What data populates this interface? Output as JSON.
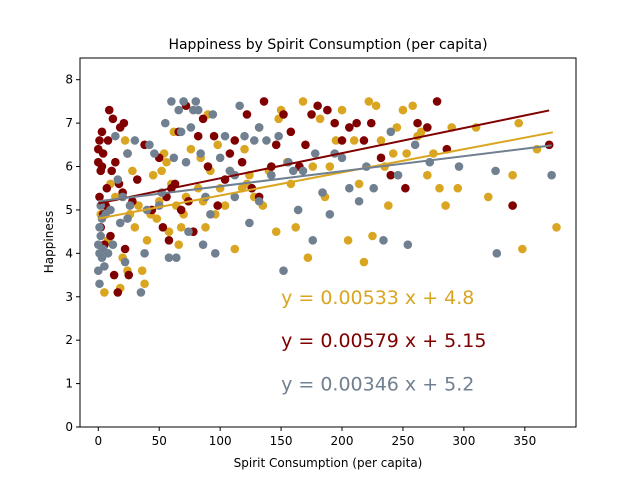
{
  "chart_data": {
    "type": "scatter",
    "title": "Happiness by Spirit Consumption (per capita)",
    "xlabel": "Spirit Consumption (per capita)",
    "ylabel": "Happiness",
    "xlim": [
      -15,
      392
    ],
    "ylim": [
      0,
      8.5
    ],
    "xticks": [
      0,
      50,
      100,
      150,
      200,
      250,
      300,
      350
    ],
    "yticks": [
      0,
      1,
      2,
      3,
      4,
      5,
      6,
      7,
      8
    ],
    "grid": false,
    "series": [
      {
        "color": "#DAA520",
        "fit": {
          "slope": 0.00533,
          "intercept": 4.8,
          "x_range": [
            0,
            373
          ],
          "label": "y = 0.00533 x + 4.8",
          "label_pos": [
            150,
            3
          ]
        },
        "points": [
          [
            2,
            4.9
          ],
          [
            5,
            5.1
          ],
          [
            5,
            3.1
          ],
          [
            8,
            4.3
          ],
          [
            10,
            5.6
          ],
          [
            14,
            5.3
          ],
          [
            18,
            3.2
          ],
          [
            20,
            3.9
          ],
          [
            22,
            6.6
          ],
          [
            24,
            3.6
          ],
          [
            26,
            4.9
          ],
          [
            28,
            5.9
          ],
          [
            30,
            4.6
          ],
          [
            33,
            5.1
          ],
          [
            36,
            3.6
          ],
          [
            38,
            3.3
          ],
          [
            40,
            4.3
          ],
          [
            43,
            4.9
          ],
          [
            45,
            5.8
          ],
          [
            48,
            4.8
          ],
          [
            50,
            5.2
          ],
          [
            52,
            5.9
          ],
          [
            54,
            6.3
          ],
          [
            56,
            6.1
          ],
          [
            58,
            4.5
          ],
          [
            60,
            5.6
          ],
          [
            62,
            6.8
          ],
          [
            64,
            5.1
          ],
          [
            66,
            4.2
          ],
          [
            68,
            4.6
          ],
          [
            70,
            4.9
          ],
          [
            72,
            5.3
          ],
          [
            74,
            5.2
          ],
          [
            76,
            6.4
          ],
          [
            78,
            4.5
          ],
          [
            82,
            5.5
          ],
          [
            84,
            6.2
          ],
          [
            88,
            4.6
          ],
          [
            90,
            7.2
          ],
          [
            92,
            5.9
          ],
          [
            96,
            4.9
          ],
          [
            98,
            6.5
          ],
          [
            100,
            5.5
          ],
          [
            104,
            5.1
          ],
          [
            108,
            5.9
          ],
          [
            112,
            4.1
          ],
          [
            118,
            5.5
          ],
          [
            120,
            6.4
          ],
          [
            124,
            5.8
          ],
          [
            128,
            5.3
          ],
          [
            132,
            6.9
          ],
          [
            135,
            5.1
          ],
          [
            140,
            5.9
          ],
          [
            146,
            4.5
          ],
          [
            148,
            7.1
          ],
          [
            150,
            7.3
          ],
          [
            155,
            6.1
          ],
          [
            158,
            5.6
          ],
          [
            162,
            4.6
          ],
          [
            165,
            6.0
          ],
          [
            168,
            7.5
          ],
          [
            172,
            3.9
          ],
          [
            176,
            6.0
          ],
          [
            182,
            7.1
          ],
          [
            186,
            5.3
          ],
          [
            190,
            6.0
          ],
          [
            195,
            6.6
          ],
          [
            200,
            7.3
          ],
          [
            205,
            4.3
          ],
          [
            210,
            6.6
          ],
          [
            214,
            5.6
          ],
          [
            218,
            3.8
          ],
          [
            222,
            7.5
          ],
          [
            225,
            4.4
          ],
          [
            228,
            7.4
          ],
          [
            232,
            6.6
          ],
          [
            235,
            6.0
          ],
          [
            238,
            5.1
          ],
          [
            242,
            6.3
          ],
          [
            245,
            6.9
          ],
          [
            250,
            7.3
          ],
          [
            253,
            6.3
          ],
          [
            258,
            7.4
          ],
          [
            262,
            6.7
          ],
          [
            265,
            6.8
          ],
          [
            270,
            5.8
          ],
          [
            275,
            6.3
          ],
          [
            280,
            5.5
          ],
          [
            285,
            5.1
          ],
          [
            290,
            6.9
          ],
          [
            295,
            5.5
          ],
          [
            310,
            6.9
          ],
          [
            320,
            5.3
          ],
          [
            340,
            5.8
          ],
          [
            345,
            7.0
          ],
          [
            348,
            4.1
          ],
          [
            360,
            6.4
          ],
          [
            376,
            4.6
          ],
          [
            122,
            5.6
          ],
          [
            86,
            5.2
          ]
        ]
      },
      {
        "color": "#800000",
        "fit": {
          "slope": 0.00579,
          "intercept": 5.15,
          "x_range": [
            0,
            370
          ],
          "label": "y = 0.00579 x + 5.15",
          "label_pos": [
            150,
            2
          ]
        },
        "points": [
          [
            0,
            6.4
          ],
          [
            0,
            6.1
          ],
          [
            1,
            6.6
          ],
          [
            1,
            5.3
          ],
          [
            2,
            5.9
          ],
          [
            2,
            4.6
          ],
          [
            3,
            6.8
          ],
          [
            3,
            6.0
          ],
          [
            4,
            4.9
          ],
          [
            4,
            6.3
          ],
          [
            5,
            4.2
          ],
          [
            6,
            5.1
          ],
          [
            7,
            5.5
          ],
          [
            8,
            6.6
          ],
          [
            9,
            7.3
          ],
          [
            10,
            4.4
          ],
          [
            11,
            5.9
          ],
          [
            12,
            7.1
          ],
          [
            13,
            3.5
          ],
          [
            14,
            6.1
          ],
          [
            16,
            3.1
          ],
          [
            17,
            5.6
          ],
          [
            18,
            6.9
          ],
          [
            20,
            5.4
          ],
          [
            21,
            7.0
          ],
          [
            22,
            4.1
          ],
          [
            24,
            6.3
          ],
          [
            25,
            3.5
          ],
          [
            28,
            5.2
          ],
          [
            32,
            5.7
          ],
          [
            38,
            6.5
          ],
          [
            44,
            5.0
          ],
          [
            50,
            6.2
          ],
          [
            53,
            4.6
          ],
          [
            56,
            5.3
          ],
          [
            58,
            4.3
          ],
          [
            60,
            5.5
          ],
          [
            63,
            5.6
          ],
          [
            66,
            6.8
          ],
          [
            68,
            5.0
          ],
          [
            72,
            7.4
          ],
          [
            74,
            5.2
          ],
          [
            78,
            4.5
          ],
          [
            82,
            6.7
          ],
          [
            86,
            7.1
          ],
          [
            90,
            6.0
          ],
          [
            95,
            6.7
          ],
          [
            104,
            5.7
          ],
          [
            108,
            6.3
          ],
          [
            112,
            6.6
          ],
          [
            118,
            6.1
          ],
          [
            122,
            7.2
          ],
          [
            126,
            5.5
          ],
          [
            132,
            5.3
          ],
          [
            136,
            7.5
          ],
          [
            142,
            6.0
          ],
          [
            146,
            6.5
          ],
          [
            152,
            7.2
          ],
          [
            158,
            6.8
          ],
          [
            165,
            6.0
          ],
          [
            170,
            6.5
          ],
          [
            175,
            7.2
          ],
          [
            180,
            7.4
          ],
          [
            188,
            7.3
          ],
          [
            194,
            7.0
          ],
          [
            200,
            6.6
          ],
          [
            206,
            6.9
          ],
          [
            212,
            7.0
          ],
          [
            218,
            6.6
          ],
          [
            224,
            7.0
          ],
          [
            232,
            6.2
          ],
          [
            240,
            5.8
          ],
          [
            252,
            5.5
          ],
          [
            262,
            7.0
          ],
          [
            270,
            6.9
          ],
          [
            278,
            7.5
          ],
          [
            286,
            6.4
          ],
          [
            340,
            5.1
          ],
          [
            370,
            6.5
          ],
          [
            98,
            5.1
          ]
        ]
      },
      {
        "color": "#708090",
        "fit": {
          "slope": 0.00346,
          "intercept": 5.2,
          "x_range": [
            0,
            372
          ],
          "label": "y = 0.00346 x + 5.2",
          "label_pos": [
            150,
            1
          ]
        },
        "points": [
          [
            0,
            4.2
          ],
          [
            0,
            3.6
          ],
          [
            1,
            4.6
          ],
          [
            1,
            4.0
          ],
          [
            1,
            3.3
          ],
          [
            2,
            5.1
          ],
          [
            2,
            4.4
          ],
          [
            3,
            3.9
          ],
          [
            3,
            4.8
          ],
          [
            4,
            4.1
          ],
          [
            5,
            3.7
          ],
          [
            6,
            4.9
          ],
          [
            8,
            4.0
          ],
          [
            10,
            5.0
          ],
          [
            12,
            4.2
          ],
          [
            14,
            6.7
          ],
          [
            16,
            5.7
          ],
          [
            18,
            4.7
          ],
          [
            20,
            5.3
          ],
          [
            22,
            3.8
          ],
          [
            24,
            4.8
          ],
          [
            26,
            5.1
          ],
          [
            30,
            6.6
          ],
          [
            35,
            3.1
          ],
          [
            38,
            4.0
          ],
          [
            40,
            5.0
          ],
          [
            42,
            6.5
          ],
          [
            46,
            6.3
          ],
          [
            50,
            5.1
          ],
          [
            52,
            5.4
          ],
          [
            55,
            7.0
          ],
          [
            58,
            3.9
          ],
          [
            60,
            7.5
          ],
          [
            62,
            6.2
          ],
          [
            64,
            3.9
          ],
          [
            66,
            7.3
          ],
          [
            68,
            6.8
          ],
          [
            70,
            7.5
          ],
          [
            72,
            6.1
          ],
          [
            74,
            4.5
          ],
          [
            76,
            6.9
          ],
          [
            78,
            7.3
          ],
          [
            80,
            7.5
          ],
          [
            84,
            6.3
          ],
          [
            86,
            4.2
          ],
          [
            88,
            5.3
          ],
          [
            92,
            4.9
          ],
          [
            96,
            4.0
          ],
          [
            100,
            6.2
          ],
          [
            104,
            6.7
          ],
          [
            108,
            5.9
          ],
          [
            112,
            5.3
          ],
          [
            116,
            7.4
          ],
          [
            120,
            6.7
          ],
          [
            124,
            4.7
          ],
          [
            128,
            6.6
          ],
          [
            132,
            5.2
          ],
          [
            138,
            6.6
          ],
          [
            142,
            5.8
          ],
          [
            148,
            6.7
          ],
          [
            152,
            3.6
          ],
          [
            156,
            6.1
          ],
          [
            160,
            5.9
          ],
          [
            164,
            5.0
          ],
          [
            168,
            5.9
          ],
          [
            176,
            4.3
          ],
          [
            178,
            6.3
          ],
          [
            184,
            5.4
          ],
          [
            190,
            4.9
          ],
          [
            194,
            6.3
          ],
          [
            200,
            6.2
          ],
          [
            206,
            5.5
          ],
          [
            214,
            5.2
          ],
          [
            220,
            6.0
          ],
          [
            226,
            5.5
          ],
          [
            234,
            4.3
          ],
          [
            240,
            6.8
          ],
          [
            246,
            5.8
          ],
          [
            254,
            4.2
          ],
          [
            260,
            6.5
          ],
          [
            272,
            6.1
          ],
          [
            296,
            6.0
          ],
          [
            326,
            5.9
          ],
          [
            327,
            4.0
          ],
          [
            372,
            5.8
          ],
          [
            112,
            5.8
          ],
          [
            132,
            6.9
          ],
          [
            94,
            7.2
          ],
          [
            82,
            7.3
          ],
          [
            24,
            6.3
          ]
        ]
      }
    ]
  }
}
